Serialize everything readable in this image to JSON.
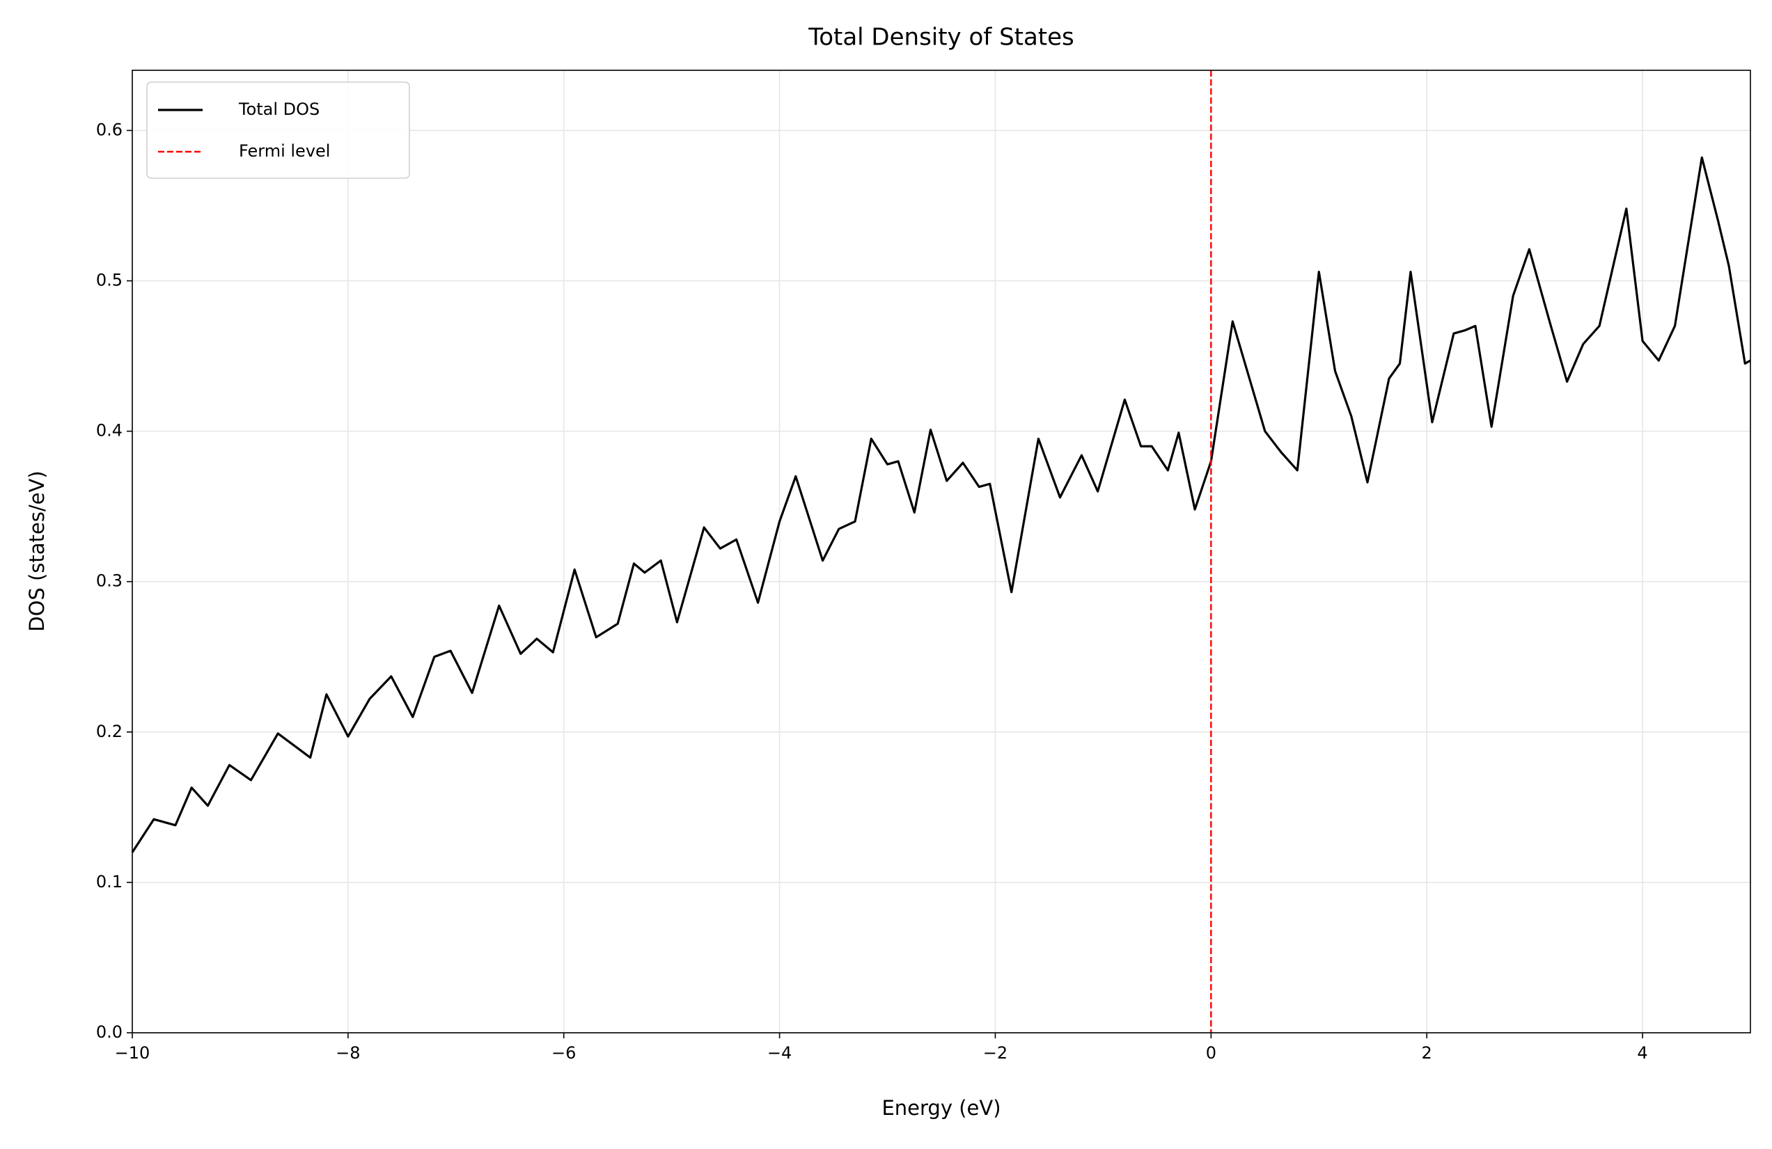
{
  "chart_data": {
    "type": "line",
    "title": "Total Density of States",
    "x_label": "Energy (eV)",
    "y_label": "DOS (states/eV)",
    "x": [
      -10,
      -9.8,
      -9.6,
      -9.45,
      -9.3,
      -9.1,
      -8.9,
      -8.65,
      -8.35,
      -8.2,
      -8.0,
      -7.8,
      -7.6,
      -7.4,
      -7.2,
      -7.05,
      -6.85,
      -6.6,
      -6.4,
      -6.25,
      -6.1,
      -5.9,
      -5.7,
      -5.5,
      -5.35,
      -5.25,
      -5.1,
      -4.95,
      -4.7,
      -4.55,
      -4.4,
      -4.2,
      -4.0,
      -3.85,
      -3.6,
      -3.45,
      -3.3,
      -3.15,
      -3.0,
      -2.9,
      -2.75,
      -2.6,
      -2.45,
      -2.3,
      -2.15,
      -2.05,
      -1.85,
      -1.6,
      -1.4,
      -1.2,
      -1.05,
      -0.8,
      -0.65,
      -0.55,
      -0.4,
      -0.3,
      -0.15,
      0.0,
      0.2,
      0.5,
      0.65,
      0.8,
      1.0,
      1.15,
      1.3,
      1.45,
      1.65,
      1.75,
      1.85,
      2.05,
      2.25,
      2.35,
      2.45,
      2.6,
      2.8,
      2.95,
      3.15,
      3.3,
      3.45,
      3.6,
      3.85,
      4.0,
      4.15,
      4.3,
      4.55,
      4.7,
      4.8,
      4.95,
      5.0
    ],
    "series": [
      {
        "name": "Total DOS",
        "color": "#000000",
        "values": [
          0.12,
          0.142,
          0.138,
          0.163,
          0.151,
          0.178,
          0.168,
          0.199,
          0.183,
          0.225,
          0.197,
          0.222,
          0.237,
          0.21,
          0.25,
          0.254,
          0.226,
          0.284,
          0.252,
          0.262,
          0.253,
          0.308,
          0.263,
          0.272,
          0.312,
          0.306,
          0.314,
          0.273,
          0.336,
          0.322,
          0.328,
          0.286,
          0.34,
          0.37,
          0.314,
          0.335,
          0.34,
          0.395,
          0.378,
          0.38,
          0.346,
          0.401,
          0.367,
          0.379,
          0.363,
          0.365,
          0.293,
          0.395,
          0.356,
          0.384,
          0.36,
          0.421,
          0.39,
          0.39,
          0.374,
          0.399,
          0.348,
          0.38,
          0.473,
          0.4,
          0.386,
          0.374,
          0.506,
          0.44,
          0.41,
          0.366,
          0.435,
          0.445,
          0.506,
          0.406,
          0.465,
          0.467,
          0.47,
          0.403,
          0.49,
          0.521,
          0.47,
          0.433,
          0.458,
          0.47,
          0.548,
          0.46,
          0.447,
          0.47,
          0.582,
          0.54,
          0.51,
          0.445,
          0.447
        ]
      }
    ],
    "vlines": [
      {
        "name": "Fermi level",
        "x": 0,
        "color": "#ff0000",
        "style": "dashed"
      }
    ],
    "xlim": [
      -10,
      5
    ],
    "xticks": [
      {
        "value": -10,
        "label": "−10"
      },
      {
        "value": -8,
        "label": "−8"
      },
      {
        "value": -6,
        "label": "−6"
      },
      {
        "value": -4,
        "label": "−4"
      },
      {
        "value": -2,
        "label": "−2"
      },
      0,
      2,
      4
    ],
    "ylim": [
      0,
      0.64
    ],
    "yticks": [
      {
        "value": 0,
        "label": "0.0"
      },
      0.1,
      0.2,
      0.3,
      0.4,
      0.5,
      0.6
    ],
    "grid": true,
    "legend": "upper left"
  }
}
